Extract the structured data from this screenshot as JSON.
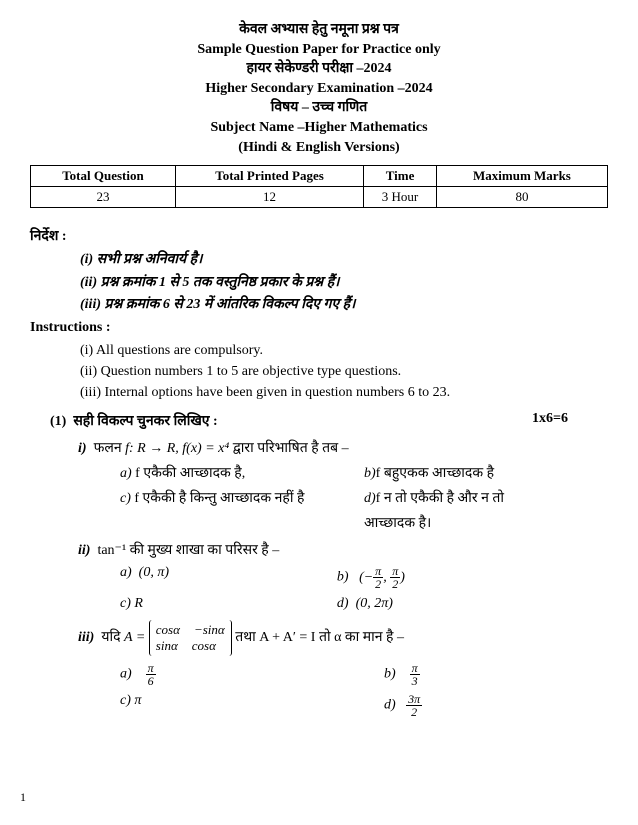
{
  "header": {
    "l1": "केवल अभ्यास हेतु नमूना प्रश्न पत्र",
    "l2": "Sample Question Paper for Practice only",
    "l3": "हायर सेकेण्डरी परीक्षा –2024",
    "l4": "Higher Secondary Examination –2024",
    "l5": "विषय – उच्च गणित",
    "l6": "Subject Name –Higher Mathematics",
    "l7": "(Hindi & English Versions)"
  },
  "table": {
    "h1": "Total Question",
    "h2": "Total Printed Pages",
    "h3": "Time",
    "h4": "Maximum Marks",
    "v1": "23",
    "v2": "12",
    "v3": "3 Hour",
    "v4": "80"
  },
  "nirdesh_title": "निर्देश :",
  "nirdesh": {
    "i": "(i) सभी प्रश्न अनिवार्य है।",
    "ii": "(ii) प्रश्न क्रमांक 1 से 5 तक वस्तुनिष्ठ प्रकार के प्रश्न हैं।",
    "iii": "(iii) प्रश्न क्रमांक 6 से 23 में आंतरिक विकल्प दिए गए हैं।"
  },
  "instr_title": "Instructions :",
  "instr": {
    "i": "(i) All questions are compulsory.",
    "ii": "(ii) Question numbers 1 to 5 are objective type questions.",
    "iii": "(iii) Internal options have been given in question numbers 6 to 23."
  },
  "q1": {
    "num": "(1)",
    "text": "सही विकल्प चुनकर लिखिए :",
    "marks": "1x6=6"
  },
  "q1i": {
    "label": "i)",
    "stem1": "फलन ",
    "math": "f: R → R, f(x) = x⁴",
    "stem2": "   द्वारा परिभाषित है तब –",
    "a_label": "a)",
    "a": " f एकैकी आच्छादक है,",
    "b_label": "b)",
    "b": "f बहुएकक आच्छादक है",
    "c_label": "c)",
    "c": " f एकैकी है किन्तु आच्छादक नहीं है",
    "d_label": "d)",
    "d": "f न तो एकैकी है और न तो",
    "d2": "आच्छादक है।"
  },
  "q1ii": {
    "label": "ii)",
    "stem1": "tan⁻¹ की मुख्य शाखा का परिसर है –",
    "a_label": "a)",
    "a": "(0, π)",
    "b_label": "b)",
    "c_label": "c)",
    "c": "R",
    "d_label": "d)",
    "d": "(0, 2π)"
  },
  "q1iii": {
    "label": "iii)",
    "stem1": "यदि ",
    "stem2": " तथा A + A′ = I तो α का मान है –",
    "a_label": "a)",
    "b_label": "b)",
    "c_label": "c)",
    "c": "π",
    "d_label": "d)"
  },
  "frac": {
    "pi": "π",
    "two": "2",
    "three": "3",
    "six": "6",
    "threepi": "3π",
    "negpi": "π"
  },
  "matrix": {
    "r1c1": "cosα",
    "r1c2": "−sinα",
    "r2c1": "sinα",
    "r2c2": "cosα",
    "A": "A ="
  },
  "page": "1"
}
